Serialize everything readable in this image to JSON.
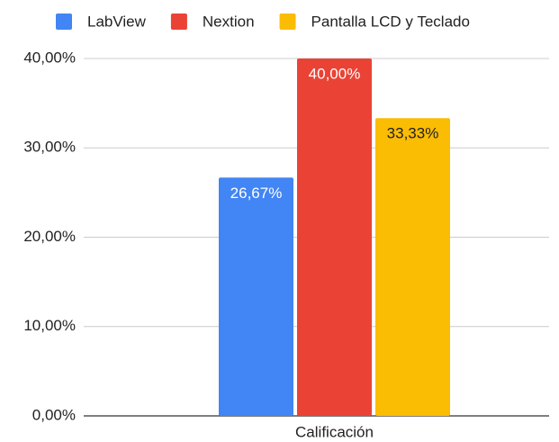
{
  "chart_data": {
    "type": "bar",
    "categories": [
      "Calificación"
    ],
    "series": [
      {
        "name": "LabView",
        "color": "#4285f4",
        "values": [
          26.67
        ],
        "value_labels": [
          "26,67%"
        ]
      },
      {
        "name": "Nextion",
        "color": "#ea4335",
        "values": [
          40
        ],
        "value_labels": [
          "40,00%"
        ]
      },
      {
        "name": "Pantalla LCD y Teclado",
        "color": "#fbbc04",
        "values": [
          33.33
        ],
        "value_labels": [
          "33,33%"
        ]
      }
    ],
    "ylim": [
      0,
      40
    ],
    "yticks": [
      {
        "value": 0,
        "label": "0,00%"
      },
      {
        "value": 10,
        "label": "10,00%"
      },
      {
        "value": 20,
        "label": "20,00%"
      },
      {
        "value": 30,
        "label": "30,00%"
      },
      {
        "value": 40,
        "label": "40,00%"
      }
    ],
    "grid": true,
    "legend": "top"
  }
}
